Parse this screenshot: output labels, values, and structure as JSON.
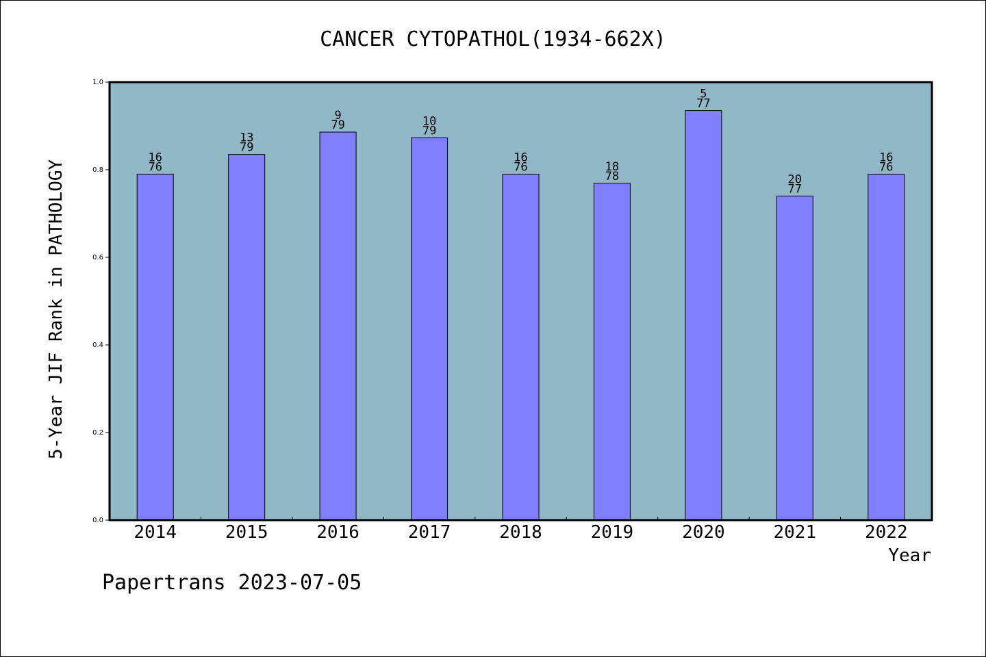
{
  "chart_data": {
    "type": "bar",
    "title": "CANCER CYTOPATHOL(1934-662X)",
    "xlabel": "Year",
    "ylabel": "5-Year JIF Rank in PATHOLOGY",
    "ylim": [
      0.0,
      1.0
    ],
    "yticks": [
      "0.0",
      "0.2",
      "0.4",
      "0.6",
      "0.8",
      "1.0"
    ],
    "grid": false,
    "categories": [
      "2014",
      "2015",
      "2016",
      "2017",
      "2018",
      "2019",
      "2020",
      "2021",
      "2022"
    ],
    "values": [
      0.79,
      0.835,
      0.886,
      0.873,
      0.79,
      0.769,
      0.935,
      0.74,
      0.79
    ],
    "bar_labels": [
      {
        "rank": "16",
        "total": "76"
      },
      {
        "rank": "13",
        "total": "79"
      },
      {
        "rank": "9",
        "total": "79"
      },
      {
        "rank": "10",
        "total": "79"
      },
      {
        "rank": "16",
        "total": "76"
      },
      {
        "rank": "18",
        "total": "78"
      },
      {
        "rank": "5",
        "total": "77"
      },
      {
        "rank": "20",
        "total": "77"
      },
      {
        "rank": "16",
        "total": "76"
      }
    ],
    "colors": {
      "plot_background": "#91b8c7",
      "bar_fill": "#8080ff",
      "bar_stroke": "#000000"
    }
  },
  "footer": {
    "credit": "Papertrans 2023-07-05"
  }
}
